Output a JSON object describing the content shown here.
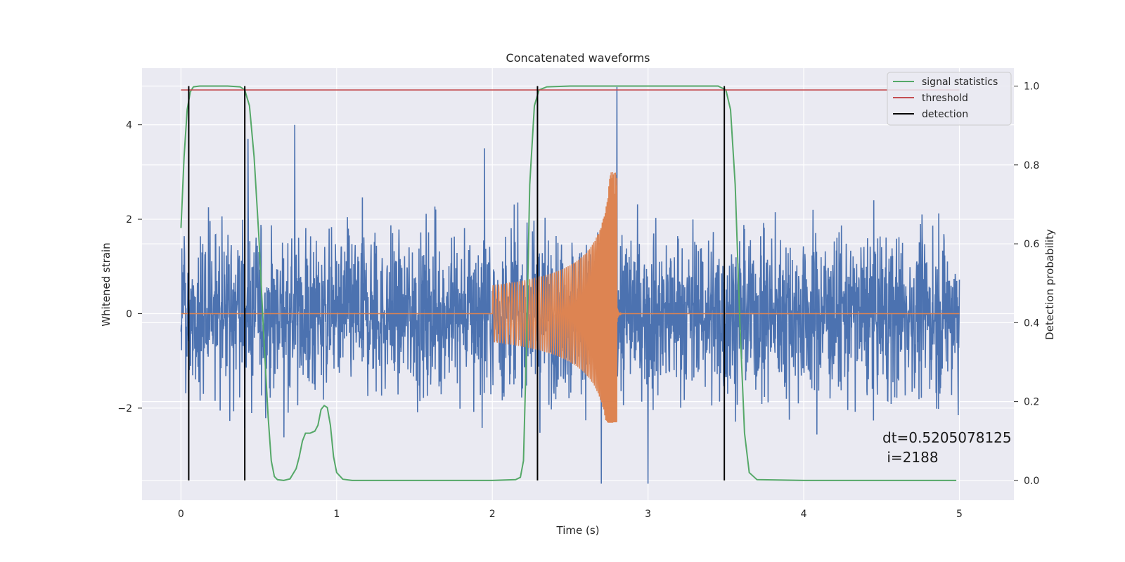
{
  "chart_data": {
    "type": "line",
    "title": "Concatenated waveforms",
    "xlabel": "Time (s)",
    "ylabel": "Whitened strain",
    "ylabel_right": "Detection probability",
    "xlim": [
      -0.25,
      5.35
    ],
    "ylim": [
      -3.95,
      5.2
    ],
    "ylim_right": [
      -0.05,
      1.0454
    ],
    "x_ticks": [
      0,
      1,
      2,
      3,
      4,
      5
    ],
    "y_ticks": [
      -2,
      0,
      2,
      4
    ],
    "y_ticks_right": [
      "0.0",
      "0.2",
      "0.4",
      "0.6",
      "0.8",
      "1.0"
    ],
    "grid": true,
    "legend_position": "top-right",
    "colors": {
      "strain": "#4c72b0",
      "injection": "#dd8452",
      "signal_statistics": "#55a868",
      "threshold": "#c44e52",
      "detection": "#000000",
      "background": "#eaeaf2",
      "grid": "#ffffff"
    },
    "series": [
      {
        "name": "",
        "role": "whitened-strain",
        "axis": "left",
        "x_range": [
          0,
          5
        ],
        "noise_envelope": [
          -3.6,
          4.8
        ],
        "note_points": [
          [
            0.73,
            4.0
          ],
          [
            0.43,
            3.7
          ],
          [
            1.95,
            3.5
          ],
          [
            2.8,
            4.8
          ],
          [
            2.7,
            -3.6
          ],
          [
            3.0,
            -3.6
          ]
        ]
      },
      {
        "name": "",
        "role": "injected-chirp",
        "axis": "left",
        "x_range": [
          2.0,
          2.85
        ],
        "start_amplitude": 0.6,
        "peak_time": 2.8,
        "peak_value": [
          3.0,
          -2.3
        ]
      },
      {
        "name": "signal statistics",
        "axis": "right",
        "x": [
          0.0,
          0.02,
          0.04,
          0.06,
          0.08,
          0.12,
          0.2,
          0.3,
          0.38,
          0.41,
          0.44,
          0.47,
          0.5,
          0.53,
          0.56,
          0.58,
          0.6,
          0.62,
          0.66,
          0.7,
          0.74,
          0.76,
          0.78,
          0.8,
          0.83,
          0.86,
          0.88,
          0.9,
          0.92,
          0.94,
          0.96,
          0.98,
          1.0,
          1.04,
          1.1,
          1.5,
          2.0,
          2.15,
          2.18,
          2.2,
          2.22,
          2.24,
          2.27,
          2.3,
          2.35,
          2.5,
          3.0,
          3.45,
          3.5,
          3.53,
          3.56,
          3.59,
          3.62,
          3.65,
          3.7,
          4.0,
          4.5,
          4.98
        ],
        "values": [
          0.64,
          0.82,
          0.94,
          0.985,
          0.998,
          1.0,
          1.0,
          1.0,
          0.998,
          0.99,
          0.95,
          0.82,
          0.62,
          0.38,
          0.16,
          0.05,
          0.01,
          0.002,
          0.0,
          0.004,
          0.03,
          0.06,
          0.1,
          0.12,
          0.12,
          0.125,
          0.14,
          0.18,
          0.19,
          0.185,
          0.14,
          0.06,
          0.02,
          0.003,
          0.0,
          0.0,
          0.0,
          0.002,
          0.008,
          0.05,
          0.35,
          0.75,
          0.95,
          0.99,
          0.998,
          1.0,
          1.0,
          1.0,
          0.99,
          0.94,
          0.75,
          0.4,
          0.12,
          0.02,
          0.002,
          0.0,
          0.0,
          0.0
        ]
      },
      {
        "name": "threshold",
        "axis": "right",
        "x": [
          0,
          5
        ],
        "values": [
          0.99,
          0.99
        ]
      },
      {
        "name": "detection",
        "axis": "right",
        "kind": "vertical-lines",
        "x": [
          0.05,
          0.41,
          2.29,
          3.49
        ],
        "range": [
          0.0,
          1.0
        ]
      }
    ],
    "annotation": {
      "line1": "dt=0.5205078125",
      "line2": " i=2188"
    }
  }
}
